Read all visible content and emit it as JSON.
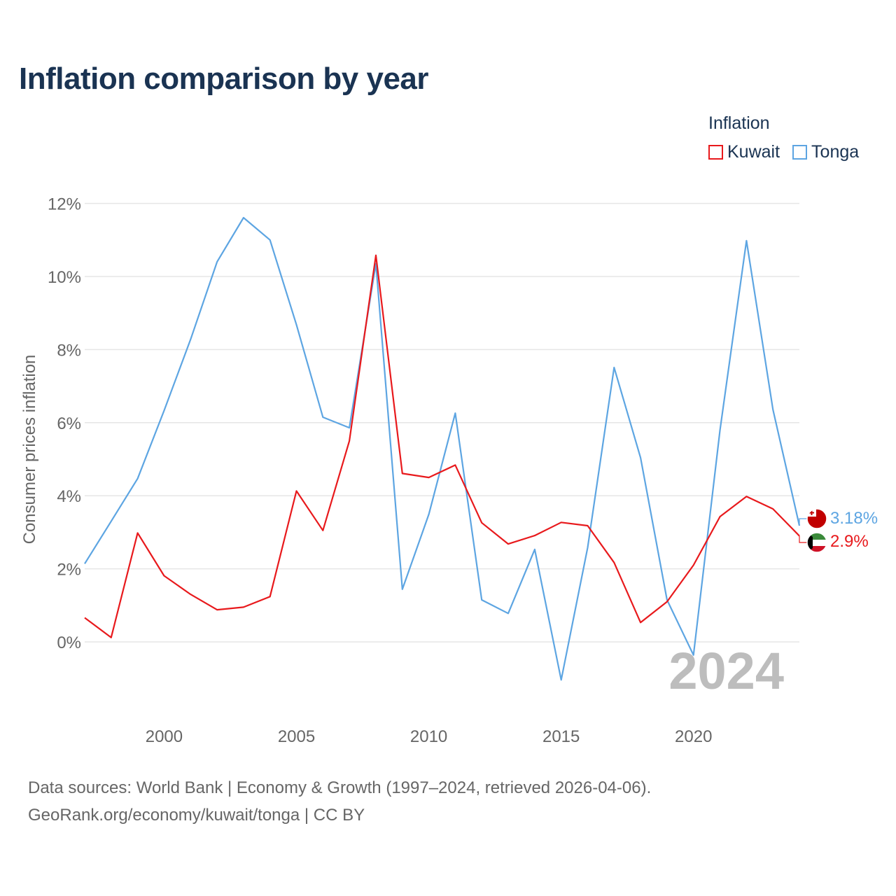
{
  "title": "Inflation comparison by year",
  "legend_title": "Inflation",
  "colors": {
    "kuwait": "#e8191c",
    "tonga": "#5da5e2",
    "grid": "#e6e6e6",
    "axis_text": "#666666",
    "watermark": "#bdbdbd"
  },
  "footer": {
    "line1": "Data sources: World Bank | Economy & Growth (1997–2024, retrieved 2026-04-06).",
    "line2": "GeoRank.org/economy/kuwait/tonga | CC BY"
  },
  "chart_data": {
    "type": "line",
    "title": "Inflation comparison by year",
    "ylabel": "Consumer prices inflation",
    "xlabel": "",
    "ylim": [
      -2,
      12
    ],
    "xlim": [
      1997,
      2024
    ],
    "yticks": [
      0,
      2,
      4,
      6,
      8,
      10,
      12
    ],
    "ytick_labels": [
      "0%",
      "2%",
      "4%",
      "6%",
      "8%",
      "10%",
      "12%"
    ],
    "xticks": [
      2000,
      2005,
      2010,
      2015,
      2020
    ],
    "xtick_labels": [
      "2000",
      "2005",
      "2010",
      "2015",
      "2020"
    ],
    "watermark_year": "2024",
    "x": [
      1997,
      1998,
      1999,
      2000,
      2001,
      2002,
      2003,
      2004,
      2005,
      2006,
      2007,
      2008,
      2009,
      2010,
      2011,
      2012,
      2013,
      2014,
      2015,
      2016,
      2017,
      2018,
      2019,
      2020,
      2021,
      2022,
      2023,
      2024
    ],
    "series": [
      {
        "name": "Kuwait",
        "key": "kuwait",
        "end_label": "2.9%",
        "values": [
          0.66,
          0.12,
          2.98,
          1.81,
          1.3,
          0.88,
          0.95,
          1.24,
          4.13,
          3.05,
          5.5,
          10.58,
          4.61,
          4.5,
          4.84,
          3.26,
          2.68,
          2.91,
          3.27,
          3.18,
          2.17,
          0.53,
          1.1,
          2.1,
          3.43,
          3.98,
          3.64,
          2.9
        ]
      },
      {
        "name": "Tonga",
        "key": "tonga",
        "end_label": "3.18%",
        "values": [
          2.14,
          3.3,
          4.47,
          6.33,
          8.28,
          10.4,
          11.61,
          11.0,
          8.68,
          6.15,
          5.86,
          10.35,
          1.44,
          3.49,
          6.26,
          1.15,
          0.78,
          2.53,
          -1.04,
          2.58,
          7.51,
          5.04,
          1.15,
          -0.36,
          5.8,
          10.98,
          6.36,
          3.18
        ]
      }
    ]
  }
}
